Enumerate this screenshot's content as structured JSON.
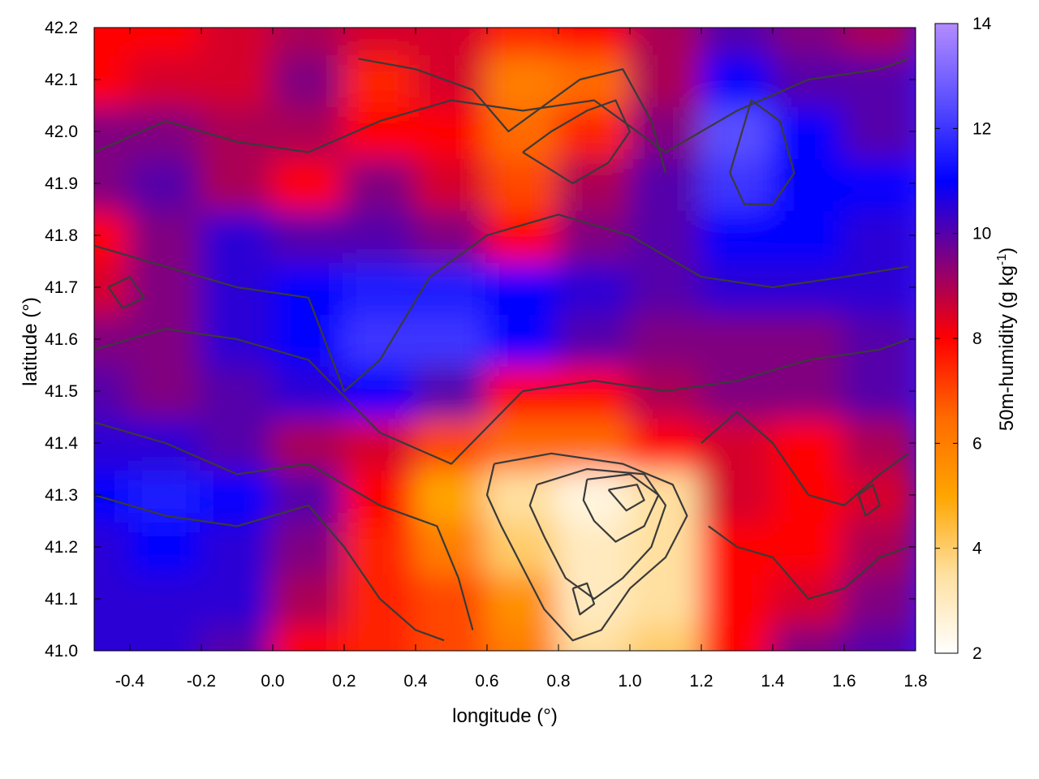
{
  "chart_data": {
    "type": "heatmap",
    "title": "",
    "xlabel": "longitude (°)",
    "ylabel": "latitude (°)",
    "colorbar_label": "50m-humidity (g kg⁻¹)",
    "colorbar_label_main": "50m-humidity (g kg",
    "colorbar_label_exp": "-1",
    "colorbar_label_close": ")",
    "xlim": [
      -0.5,
      1.8
    ],
    "ylim": [
      41.0,
      42.2
    ],
    "clim": [
      2,
      14
    ],
    "x_ticks": [
      "-0.4",
      "-0.2",
      "0.0",
      "0.2",
      "0.4",
      "0.6",
      "0.8",
      "1.0",
      "1.2",
      "1.4",
      "1.6",
      "1.8"
    ],
    "y_ticks": [
      "41.0",
      "41.1",
      "41.2",
      "41.3",
      "41.4",
      "41.5",
      "41.6",
      "41.7",
      "41.8",
      "41.9",
      "42.0",
      "42.1",
      "42.2"
    ],
    "colorbar_ticks": [
      "2",
      "4",
      "6",
      "8",
      "10",
      "12",
      "14"
    ],
    "colormap": [
      {
        "value": 2,
        "color": "#ffffff"
      },
      {
        "value": 3.5,
        "color": "#ffe0a0"
      },
      {
        "value": 5,
        "color": "#ffa500"
      },
      {
        "value": 6.5,
        "color": "#ff6a00"
      },
      {
        "value": 8,
        "color": "#ff0000"
      },
      {
        "value": 9.5,
        "color": "#800080"
      },
      {
        "value": 11,
        "color": "#0000ff"
      },
      {
        "value": 12.5,
        "color": "#5a4fff"
      },
      {
        "value": 14,
        "color": "#b38cff"
      }
    ],
    "humidity_grid": {
      "lon": [
        -0.5,
        -0.3,
        -0.1,
        0.1,
        0.3,
        0.5,
        0.7,
        0.9,
        1.1,
        1.3,
        1.5,
        1.7
      ],
      "lat": [
        41.0,
        41.1,
        41.2,
        41.3,
        41.4,
        41.5,
        41.6,
        41.7,
        41.8,
        41.9,
        42.0,
        42.1,
        42.2
      ],
      "values": [
        [
          10.5,
          10.5,
          10.0,
          8.0,
          7.5,
          7.0,
          6.0,
          3.5,
          4.0,
          8.0,
          9.5,
          10.0
        ],
        [
          10.5,
          10.5,
          10.5,
          9.0,
          7.5,
          7.0,
          5.5,
          3.0,
          3.5,
          8.0,
          8.5,
          9.5
        ],
        [
          10.5,
          11.0,
          10.5,
          9.5,
          7.5,
          6.0,
          4.0,
          3.0,
          3.5,
          8.0,
          8.0,
          9.0
        ],
        [
          11.0,
          11.5,
          11.0,
          10.0,
          8.0,
          5.0,
          3.5,
          2.5,
          3.5,
          8.5,
          8.0,
          8.5
        ],
        [
          10.5,
          10.5,
          10.0,
          9.0,
          8.5,
          7.0,
          6.5,
          6.5,
          8.0,
          8.5,
          8.0,
          9.0
        ],
        [
          10.0,
          9.5,
          10.0,
          10.5,
          11.0,
          10.0,
          8.0,
          8.0,
          9.0,
          9.5,
          9.5,
          10.0
        ],
        [
          9.5,
          9.5,
          10.5,
          11.0,
          12.0,
          12.0,
          11.0,
          10.0,
          9.5,
          9.5,
          9.5,
          10.0
        ],
        [
          8.5,
          9.5,
          10.5,
          11.0,
          11.5,
          11.5,
          11.0,
          10.5,
          10.0,
          10.5,
          10.5,
          10.5
        ],
        [
          8.0,
          9.5,
          10.5,
          10.0,
          10.0,
          9.5,
          8.0,
          9.5,
          10.0,
          11.0,
          11.0,
          10.5
        ],
        [
          9.5,
          10.0,
          9.0,
          8.0,
          9.5,
          8.5,
          7.0,
          9.0,
          10.0,
          12.0,
          11.0,
          11.0
        ],
        [
          9.5,
          9.5,
          9.0,
          9.0,
          8.0,
          8.0,
          6.5,
          7.5,
          9.5,
          12.5,
          11.0,
          10.0
        ],
        [
          8.0,
          8.5,
          8.5,
          9.5,
          7.5,
          8.5,
          6.0,
          6.5,
          9.0,
          11.0,
          10.0,
          10.0
        ],
        [
          8.0,
          8.0,
          8.5,
          9.0,
          8.5,
          8.5,
          7.5,
          8.0,
          9.0,
          10.0,
          9.5,
          9.0
        ]
      ]
    },
    "contours": [
      [
        [
          0.62,
          41.36
        ],
        [
          0.78,
          41.38
        ],
        [
          0.98,
          41.36
        ],
        [
          1.12,
          41.32
        ],
        [
          1.16,
          41.26
        ],
        [
          1.1,
          41.18
        ],
        [
          1.0,
          41.12
        ],
        [
          0.92,
          41.04
        ],
        [
          0.84,
          41.02
        ],
        [
          0.76,
          41.08
        ],
        [
          0.7,
          41.16
        ],
        [
          0.64,
          41.24
        ],
        [
          0.6,
          41.3
        ],
        [
          0.62,
          41.36
        ]
      ],
      [
        [
          0.74,
          41.32
        ],
        [
          0.88,
          41.35
        ],
        [
          1.04,
          41.34
        ],
        [
          1.1,
          41.28
        ],
        [
          1.06,
          41.2
        ],
        [
          0.98,
          41.14
        ],
        [
          0.9,
          41.1
        ],
        [
          0.82,
          41.14
        ],
        [
          0.76,
          41.22
        ],
        [
          0.72,
          41.28
        ],
        [
          0.74,
          41.32
        ]
      ],
      [
        [
          0.88,
          41.33
        ],
        [
          1.0,
          41.34
        ],
        [
          1.08,
          41.3
        ],
        [
          1.04,
          41.24
        ],
        [
          0.96,
          41.21
        ],
        [
          0.9,
          41.25
        ],
        [
          0.87,
          41.29
        ],
        [
          0.88,
          41.33
        ]
      ],
      [
        [
          0.94,
          41.31
        ],
        [
          1.02,
          41.32
        ],
        [
          1.04,
          41.29
        ],
        [
          0.99,
          41.27
        ],
        [
          0.94,
          41.31
        ]
      ],
      [
        [
          0.84,
          41.12
        ],
        [
          0.88,
          41.13
        ],
        [
          0.9,
          41.09
        ],
        [
          0.86,
          41.07
        ],
        [
          0.84,
          41.12
        ]
      ],
      [
        [
          -0.5,
          41.58
        ],
        [
          -0.3,
          41.62
        ],
        [
          -0.1,
          41.6
        ],
        [
          0.1,
          41.56
        ],
        [
          0.3,
          41.42
        ],
        [
          0.5,
          41.36
        ],
        [
          0.7,
          41.5
        ],
        [
          0.9,
          41.52
        ],
        [
          1.1,
          41.5
        ],
        [
          1.3,
          41.52
        ],
        [
          1.5,
          41.56
        ],
        [
          1.7,
          41.58
        ],
        [
          1.78,
          41.6
        ]
      ],
      [
        [
          -0.5,
          41.78
        ],
        [
          -0.3,
          41.74
        ],
        [
          -0.1,
          41.7
        ],
        [
          0.1,
          41.68
        ],
        [
          0.2,
          41.5
        ],
        [
          0.3,
          41.56
        ],
        [
          0.44,
          41.72
        ],
        [
          0.6,
          41.8
        ],
        [
          0.8,
          41.84
        ],
        [
          1.0,
          41.8
        ],
        [
          1.2,
          41.72
        ],
        [
          1.4,
          41.7
        ],
        [
          1.6,
          41.72
        ],
        [
          1.78,
          41.74
        ]
      ],
      [
        [
          -0.5,
          41.96
        ],
        [
          -0.3,
          42.02
        ],
        [
          -0.1,
          41.98
        ],
        [
          0.1,
          41.96
        ],
        [
          0.3,
          42.02
        ],
        [
          0.5,
          42.06
        ],
        [
          0.7,
          42.04
        ],
        [
          0.9,
          42.06
        ],
        [
          1.1,
          41.96
        ],
        [
          1.3,
          42.04
        ],
        [
          1.5,
          42.1
        ],
        [
          1.7,
          42.12
        ],
        [
          1.78,
          42.14
        ]
      ],
      [
        [
          -0.5,
          41.3
        ],
        [
          -0.3,
          41.26
        ],
        [
          -0.1,
          41.24
        ],
        [
          0.1,
          41.28
        ],
        [
          0.2,
          41.2
        ],
        [
          0.3,
          41.1
        ],
        [
          0.4,
          41.04
        ],
        [
          0.48,
          41.02
        ]
      ],
      [
        [
          -0.5,
          41.44
        ],
        [
          -0.3,
          41.4
        ],
        [
          -0.1,
          41.34
        ],
        [
          0.1,
          41.36
        ],
        [
          0.3,
          41.28
        ],
        [
          0.46,
          41.24
        ],
        [
          0.52,
          41.14
        ],
        [
          0.56,
          41.04
        ]
      ],
      [
        [
          0.24,
          42.14
        ],
        [
          0.4,
          42.12
        ],
        [
          0.56,
          42.08
        ],
        [
          0.66,
          42.0
        ],
        [
          0.74,
          42.04
        ],
        [
          0.86,
          42.1
        ],
        [
          0.98,
          42.12
        ],
        [
          1.06,
          42.02
        ],
        [
          1.1,
          41.92
        ]
      ],
      [
        [
          0.7,
          41.96
        ],
        [
          0.84,
          41.9
        ],
        [
          0.94,
          41.94
        ],
        [
          1.0,
          42.0
        ],
        [
          0.96,
          42.06
        ],
        [
          0.88,
          42.04
        ],
        [
          0.78,
          42.0
        ],
        [
          0.7,
          41.96
        ]
      ],
      [
        [
          1.2,
          41.4
        ],
        [
          1.3,
          41.46
        ],
        [
          1.4,
          41.4
        ],
        [
          1.5,
          41.3
        ],
        [
          1.6,
          41.28
        ],
        [
          1.7,
          41.34
        ],
        [
          1.78,
          41.38
        ]
      ],
      [
        [
          1.22,
          41.24
        ],
        [
          1.3,
          41.2
        ],
        [
          1.4,
          41.18
        ],
        [
          1.5,
          41.1
        ],
        [
          1.6,
          41.12
        ],
        [
          1.7,
          41.18
        ],
        [
          1.78,
          41.2
        ]
      ],
      [
        [
          -0.46,
          41.7
        ],
        [
          -0.4,
          41.72
        ],
        [
          -0.36,
          41.68
        ],
        [
          -0.42,
          41.66
        ],
        [
          -0.46,
          41.7
        ]
      ],
      [
        [
          1.64,
          41.3
        ],
        [
          1.68,
          41.32
        ],
        [
          1.7,
          41.28
        ],
        [
          1.66,
          41.26
        ],
        [
          1.64,
          41.3
        ]
      ],
      [
        [
          1.28,
          41.92
        ],
        [
          1.34,
          42.06
        ],
        [
          1.42,
          42.02
        ],
        [
          1.46,
          41.92
        ],
        [
          1.4,
          41.86
        ],
        [
          1.32,
          41.86
        ],
        [
          1.28,
          41.92
        ]
      ]
    ]
  }
}
